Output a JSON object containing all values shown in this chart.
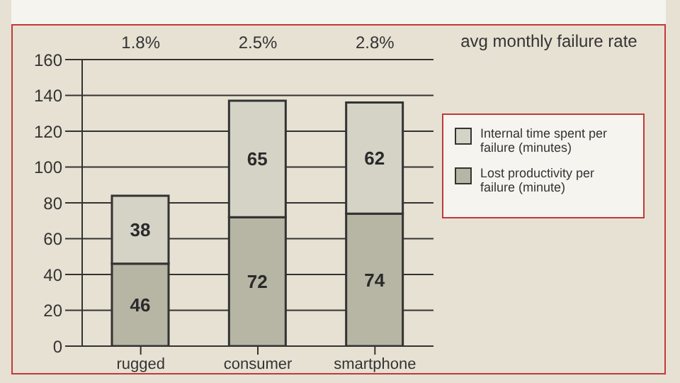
{
  "chart_data": {
    "type": "bar",
    "stacked": true,
    "categories": [
      "rugged",
      "consumer",
      "smartphone"
    ],
    "series": [
      {
        "name": "Lost productivity per failure (minute)",
        "color": "#b7b5a4",
        "values": [
          46,
          72,
          74
        ]
      },
      {
        "name": "Internal time spent per failure (minutes)",
        "color": "#d4d3c6",
        "values": [
          38,
          65,
          62
        ]
      }
    ],
    "ylim": [
      0,
      160
    ],
    "yticks": [
      0,
      20,
      40,
      60,
      80,
      100,
      120,
      140,
      160
    ],
    "grid": "y",
    "legend": "right",
    "data_labels": true,
    "annotations": [
      "1.8%",
      "2.5%",
      "2.8%",
      "avg monthly failure rate"
    ]
  }
}
